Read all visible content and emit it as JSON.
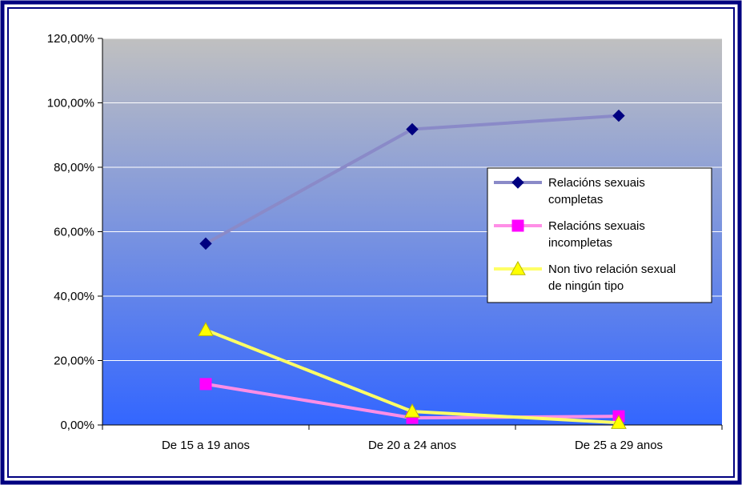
{
  "chart_data": {
    "type": "line",
    "title": "",
    "xlabel": "",
    "ylabel": "",
    "categories": [
      "De 15 a 19 anos",
      "De 20 a 24 anos",
      "De 25 a 29 anos"
    ],
    "ylim": [
      0,
      1.2
    ],
    "y_ticks": [
      0,
      0.2,
      0.4,
      0.6,
      0.8,
      1.0,
      1.2
    ],
    "y_tick_labels": [
      "0,00%",
      "20,00%",
      "40,00%",
      "60,00%",
      "80,00%",
      "100,00%",
      "120,00%"
    ],
    "grid": true,
    "legend_position": "right",
    "series": [
      {
        "name": "Relacións sexuais completas",
        "legend_lines": [
          "Relacións sexuais",
          "completas"
        ],
        "values": [
          0.563,
          0.918,
          0.96
        ],
        "color": "#8a8ac8",
        "marker_color": "#000080",
        "marker": "diamond"
      },
      {
        "name": "Relacións sexuais incompletas",
        "legend_lines": [
          "Relacións sexuais",
          "incompletas"
        ],
        "values": [
          0.127,
          0.022,
          0.027
        ],
        "color": "#ff8ee6",
        "marker_color": "#ff00ff",
        "marker": "square"
      },
      {
        "name": "Non tivo relación sexual de ningún tipo",
        "legend_lines": [
          "Non tivo relación sexual",
          "de ningún tipo"
        ],
        "values": [
          0.295,
          0.042,
          0.007
        ],
        "color": "#ffff66",
        "marker_color": "#ffff00",
        "marker": "triangle"
      }
    ]
  },
  "colors": {
    "frame": "#000080",
    "plot_top": "#c0c0c0",
    "plot_bottom": "#3366ff",
    "gridline": "#ffffff"
  }
}
